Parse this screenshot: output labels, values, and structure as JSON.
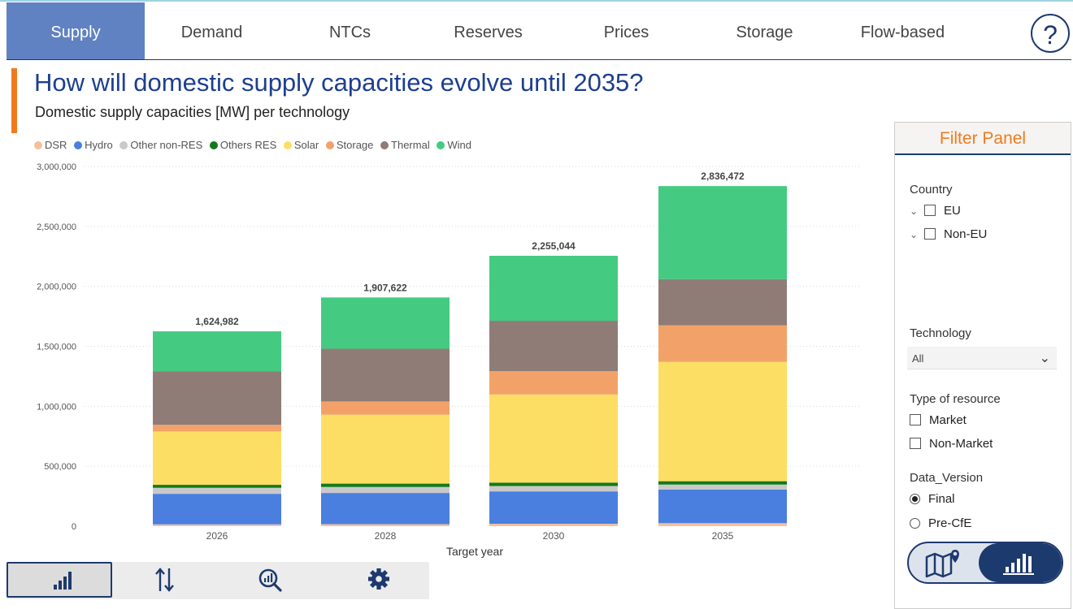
{
  "tabs": [
    {
      "label": "Supply",
      "active": true
    },
    {
      "label": "Demand",
      "active": false
    },
    {
      "label": "NTCs",
      "active": false
    },
    {
      "label": "Reserves",
      "active": false
    },
    {
      "label": "Prices",
      "active": false
    },
    {
      "label": "Storage",
      "active": false
    },
    {
      "label": "Flow-based",
      "active": false
    }
  ],
  "help_label": "?",
  "header": {
    "title": "How will domestic supply capacities evolve until 2035?",
    "subtitle": "Domestic supply capacities [MW] per technology"
  },
  "chart_data": {
    "type": "bar",
    "stacked": true,
    "categories": [
      "2026",
      "2028",
      "2030",
      "2035"
    ],
    "xlabel": "Target year",
    "ylabel": "",
    "ylim": [
      0,
      3000000
    ],
    "yticks": [
      "0",
      "500,000",
      "1,000,000",
      "1,500,000",
      "2,000,000",
      "2,500,000",
      "3,000,000"
    ],
    "grid": true,
    "legend_position": "top-left",
    "totals": [
      "1,624,982",
      "1,907,622",
      "2,255,044",
      "2,836,472"
    ],
    "series": [
      {
        "name": "DSR",
        "color": "#f4c09c",
        "values": [
          15000,
          17000,
          20000,
          25000
        ]
      },
      {
        "name": "Hydro",
        "color": "#4a7fe0",
        "values": [
          255000,
          260000,
          270000,
          280000
        ]
      },
      {
        "name": "Other non-RES",
        "color": "#c9c9c9",
        "values": [
          50000,
          50000,
          45000,
          42000
        ]
      },
      {
        "name": "Others RES",
        "color": "#137a1b",
        "values": [
          25000,
          28000,
          28000,
          28000
        ]
      },
      {
        "name": "Solar",
        "color": "#fcde64",
        "values": [
          445000,
          575000,
          735000,
          995000
        ]
      },
      {
        "name": "Storage",
        "color": "#f2a268",
        "values": [
          55000,
          110000,
          195000,
          305000
        ]
      },
      {
        "name": "Thermal",
        "color": "#8f7c77",
        "values": [
          445000,
          440000,
          420000,
          385000
        ]
      },
      {
        "name": "Wind",
        "color": "#44cb81",
        "values": [
          334982,
          427622,
          542044,
          776472
        ]
      }
    ]
  },
  "filter_panel": {
    "title": "Filter Panel",
    "country_label": "Country",
    "country_items": [
      "EU",
      "Non-EU"
    ],
    "technology_label": "Technology",
    "technology_selected": "All",
    "resource_label": "Type of resource",
    "resource_items": [
      "Market",
      "Non-Market"
    ],
    "data_version_label": "Data_Version",
    "data_version_items": [
      "Final",
      "Pre-CfE"
    ],
    "data_version_selected": "Final",
    "view_toggle": [
      "map-view",
      "chart-view"
    ]
  },
  "bottom_nav": {
    "icons": [
      "bar-chart-icon",
      "sort-arrows-icon",
      "search-chart-icon",
      "gear-icon"
    ],
    "active": "bar-chart-icon"
  },
  "colors": {
    "accent": "#f07b1f",
    "active_tab": "#6082c2",
    "title": "#1d3f8f",
    "navy": "#1d3a6e"
  }
}
